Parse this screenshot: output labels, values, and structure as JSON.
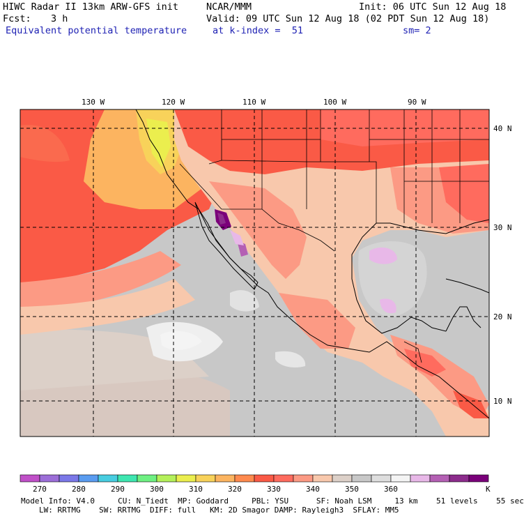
{
  "header": {
    "model_title": "HIWC Radar II 13km ARW-GFS init",
    "center": "NCAR/MMM",
    "init": "Init: 06 UTC Sun 12 Aug 18",
    "fcst_label": "Fcst:",
    "fcst_value": "3 h",
    "valid": "Valid: 09 UTC Sun 12 Aug 18 (02 PDT Sun 12 Aug 18)",
    "field_name": "Equivalent potential temperature",
    "level": "at k-index =  51",
    "smoothing": "sm= 2"
  },
  "map": {
    "lon_labels": [
      "130 W",
      "120 W",
      "110 W",
      "100 W",
      "90 W"
    ],
    "lat_labels": [
      "40 N",
      "30 N",
      "20 N",
      "10 N"
    ]
  },
  "colorbar": {
    "colors": [
      "#c050c8",
      "#9c6ed8",
      "#7b78e8",
      "#5a9cf0",
      "#48cde0",
      "#3ee6b0",
      "#6ef082",
      "#b4f05a",
      "#ebee4e",
      "#f8d25a",
      "#fcb460",
      "#ff8a4e",
      "#fa5a46",
      "#ff6b5e",
      "#fc9a84",
      "#f8c8ac",
      "#dcd0c8",
      "#c8c8c8",
      "#dedede",
      "#f4f4f4",
      "#e8b8e8",
      "#b460b4",
      "#8c2c8c",
      "#7a007a"
    ],
    "tick_labels": [
      "270",
      "280",
      "290",
      "300",
      "310",
      "320",
      "330",
      "340",
      "350",
      "360"
    ],
    "unit": "K"
  },
  "footer": {
    "line1": "Model Info: V4.0     CU: N_Tiedt  MP: Goddard     PBL: YSU      SF: Noah LSM     13 km    51 levels    55 sec",
    "line2": "LW: RRTMG    SW: RRTMG  DIFF: full   KM: 2D Smagor DAMP: Rayleigh3  SFLAY: MM5"
  }
}
